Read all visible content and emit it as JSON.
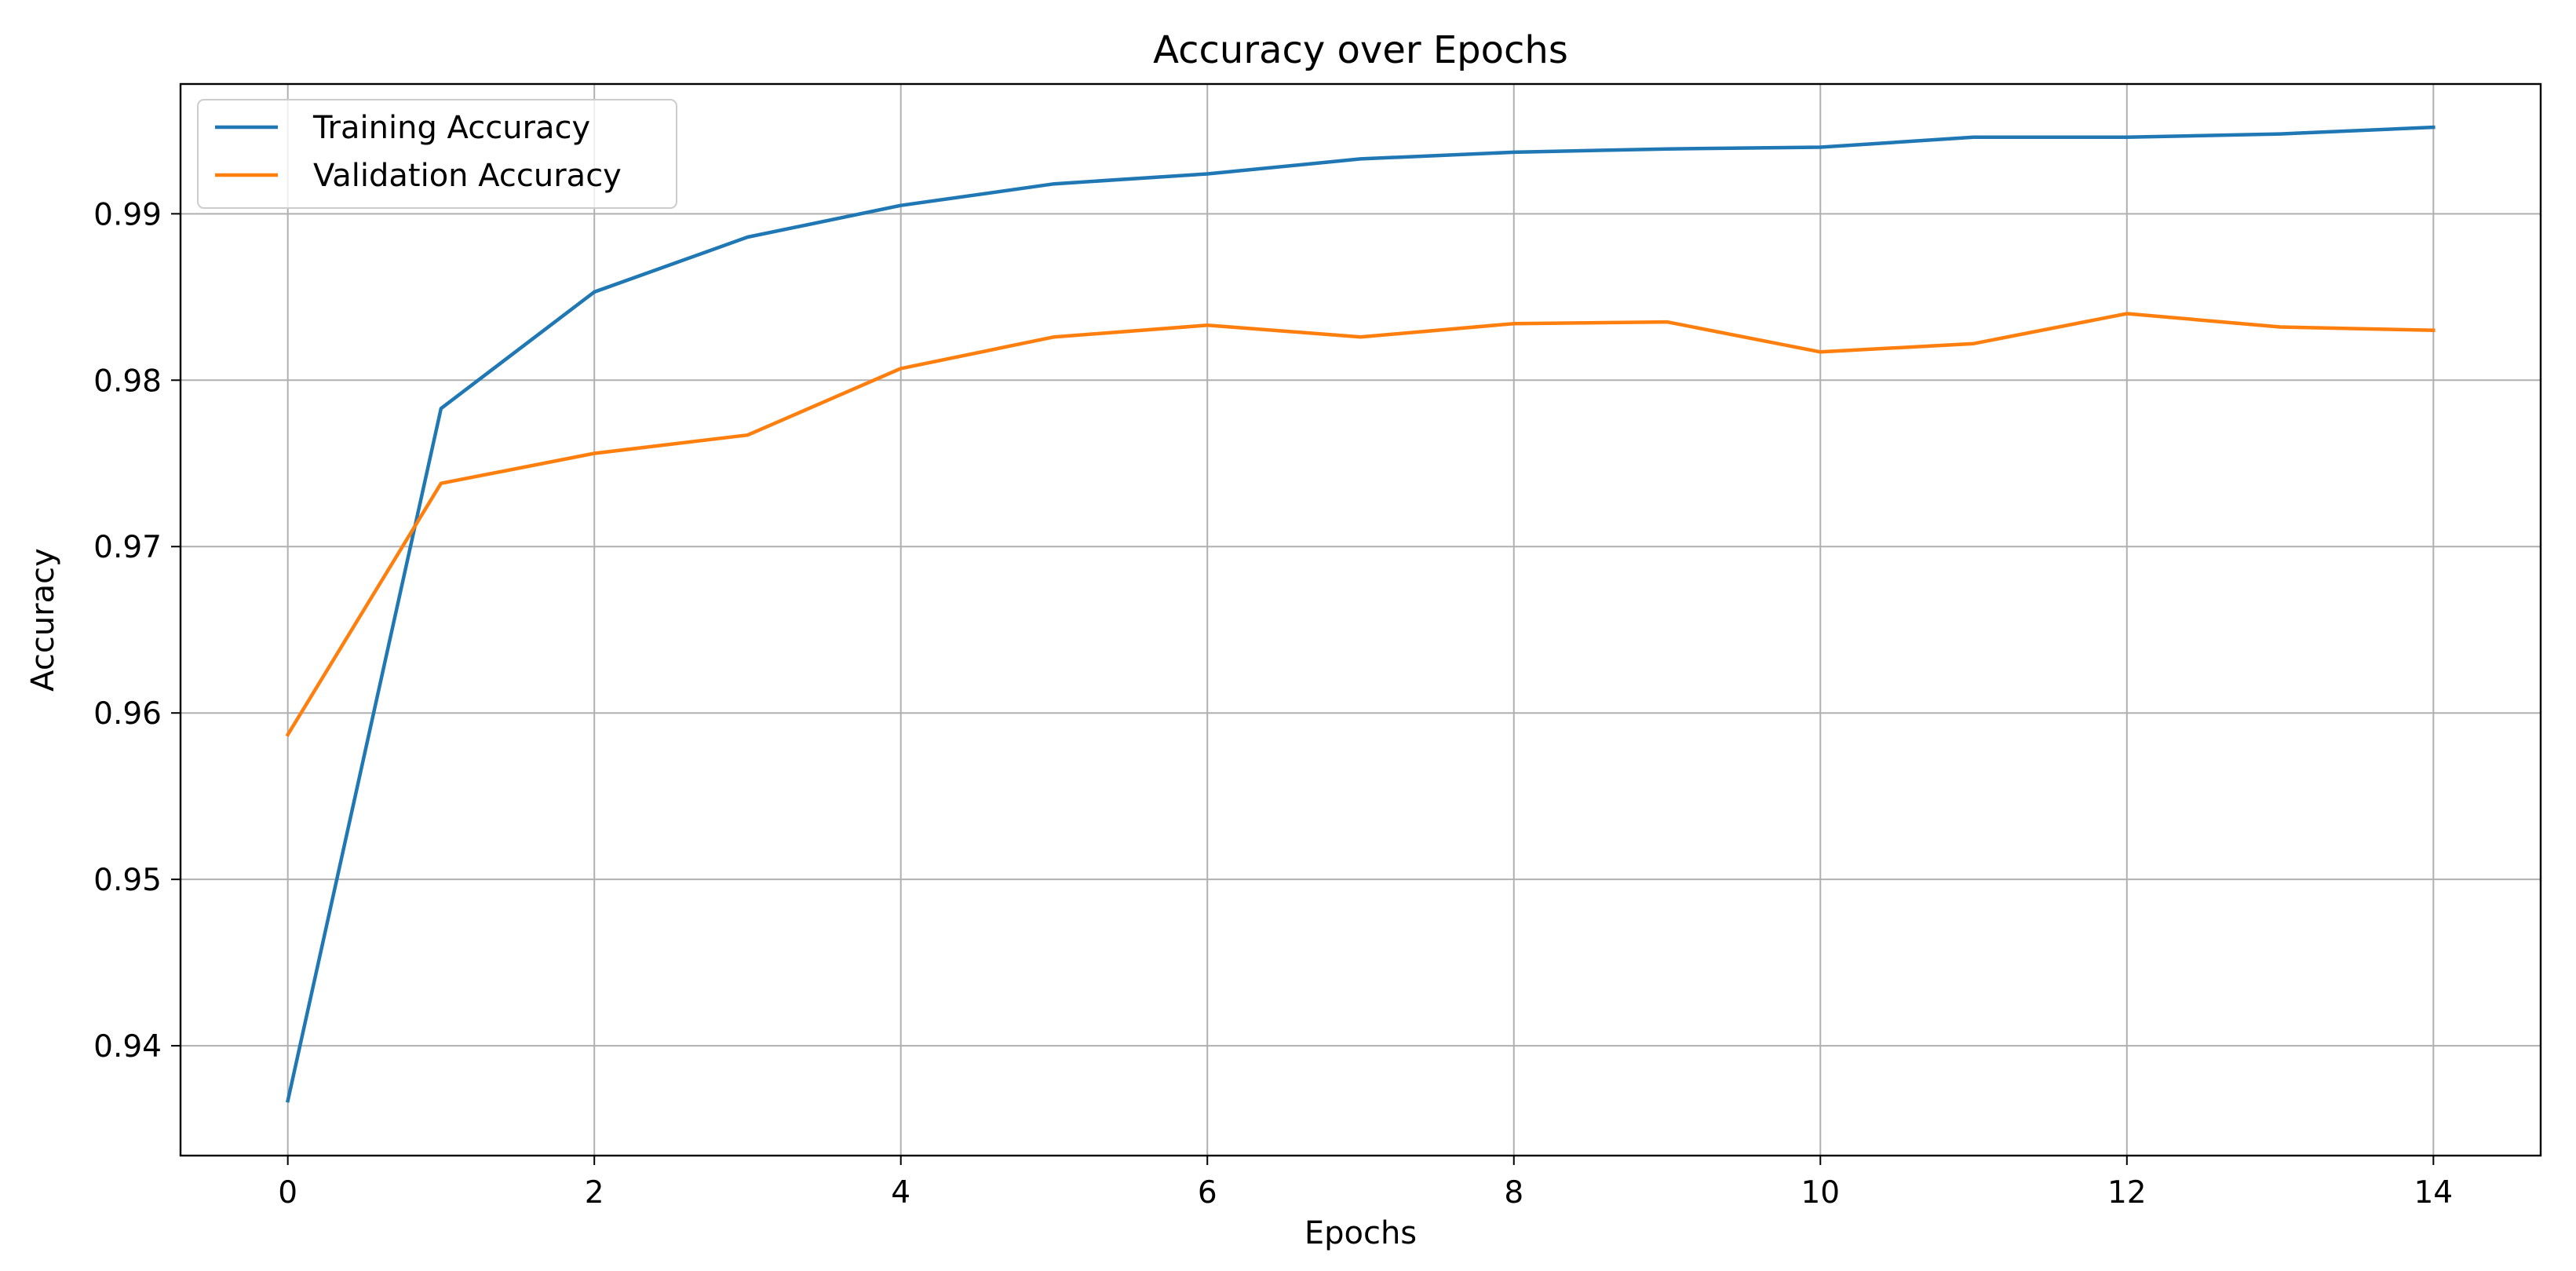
{
  "chart_data": {
    "type": "line",
    "title": "Accuracy over Epochs",
    "xlabel": "Epochs",
    "ylabel": "Accuracy",
    "x": [
      0,
      1,
      2,
      3,
      4,
      5,
      6,
      7,
      8,
      9,
      10,
      11,
      12,
      13,
      14
    ],
    "xlim": [
      -0.7,
      14.7
    ],
    "ylim": [
      0.9334,
      0.9978
    ],
    "xticks": [
      0,
      2,
      4,
      6,
      8,
      10,
      12,
      14
    ],
    "yticks": [
      0.94,
      0.95,
      0.96,
      0.97,
      0.98,
      0.99
    ],
    "grid": true,
    "legend_position": "upper-left",
    "series": [
      {
        "name": "Training Accuracy",
        "color": "#1f77b4",
        "values": [
          0.9367,
          0.9783,
          0.9853,
          0.9886,
          0.9905,
          0.9918,
          0.9924,
          0.9933,
          0.9937,
          0.9939,
          0.994,
          0.9946,
          0.9946,
          0.9948,
          0.9952
        ]
      },
      {
        "name": "Validation Accuracy",
        "color": "#ff7f0e",
        "values": [
          0.9587,
          0.9738,
          0.9756,
          0.9767,
          0.9807,
          0.9826,
          0.9833,
          0.9826,
          0.9834,
          0.9835,
          0.9817,
          0.9822,
          0.984,
          0.9832,
          0.983
        ]
      }
    ]
  }
}
